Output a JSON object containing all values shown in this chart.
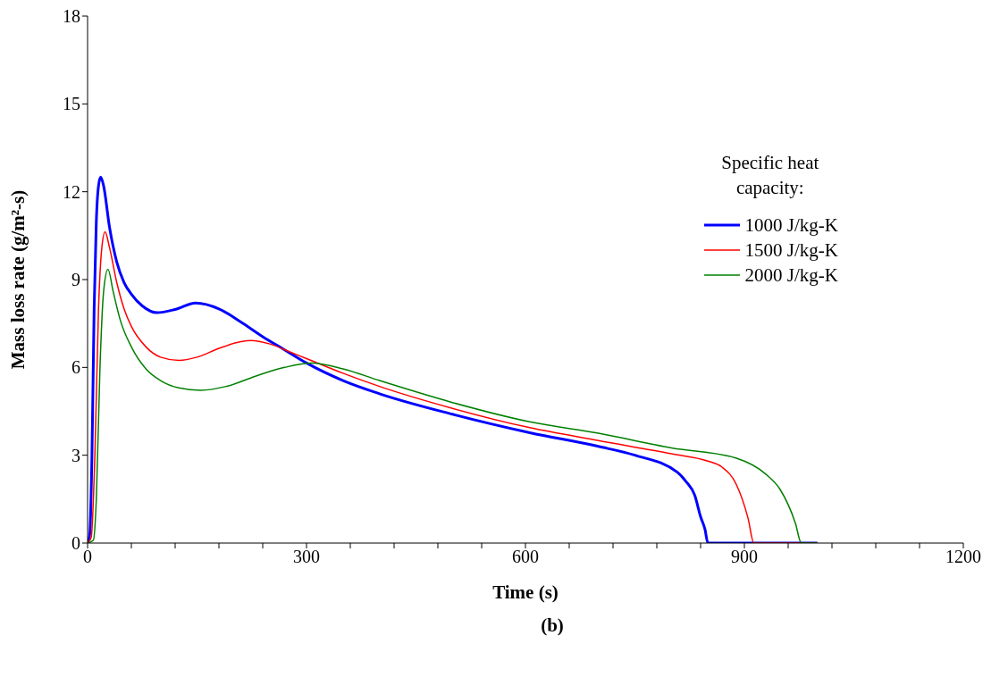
{
  "chart_data": {
    "type": "line",
    "xlabel": "Time (s)",
    "ylabel": "Mass loss rate (g/m²-s)",
    "legend_title": "Specific heat capacity:",
    "legend": "right",
    "grid": false,
    "marker": "none",
    "line_style": "solid",
    "annotations": [
      "(b)"
    ],
    "xlim": [
      0,
      1200
    ],
    "ylim": [
      0,
      18
    ],
    "xticks": [
      0,
      {
        "value": 60,
        "label": null
      },
      {
        "value": 120,
        "label": null
      },
      {
        "value": 180,
        "label": null
      },
      {
        "value": 240,
        "label": null
      },
      300,
      {
        "value": 360,
        "label": null
      },
      {
        "value": 420,
        "label": null
      },
      {
        "value": 480,
        "label": null
      },
      {
        "value": 540,
        "label": null
      },
      600,
      {
        "value": 660,
        "label": null
      },
      {
        "value": 720,
        "label": null
      },
      {
        "value": 780,
        "label": null
      },
      {
        "value": 840,
        "label": null
      },
      900,
      {
        "value": 960,
        "label": null
      },
      {
        "value": 1020,
        "label": null
      },
      {
        "value": 1080,
        "label": null
      },
      {
        "value": 1140,
        "label": null
      },
      1200
    ],
    "yticks": [
      0,
      3,
      6,
      9,
      12,
      15,
      18
    ],
    "series": [
      {
        "name": "1000 J/kg-K",
        "color": "#0000ff",
        "x": [
          0,
          3,
          6,
          9,
          12,
          15,
          18,
          22,
          30,
          40,
          50,
          60,
          75,
          95,
          120,
          148,
          180,
          210,
          240,
          270,
          300,
          350,
          400,
          500,
          606,
          700,
          750,
          808,
          820,
          832,
          840,
          846,
          850,
          1000
        ],
        "values": [
          0,
          0.3,
          3,
          8,
          11,
          12.2,
          12.5,
          12.2,
          10.8,
          9.6,
          8.9,
          8.5,
          8.1,
          7.87,
          7.98,
          8.2,
          8.0,
          7.55,
          7.05,
          6.6,
          6.15,
          5.55,
          5.1,
          4.4,
          3.77,
          3.3,
          3.0,
          2.42,
          2.1,
          1.63,
          0.9,
          0.47,
          0,
          0
        ]
      },
      {
        "name": "1500 J/kg-K",
        "color": "#ff0000",
        "x": [
          0,
          5,
          10,
          15,
          20,
          24,
          30,
          40,
          50,
          60,
          80,
          100,
          125,
          150,
          180,
          210,
          224,
          250,
          280,
          300,
          350,
          400,
          500,
          606,
          700,
          800,
          850,
          869,
          889,
          905,
          913,
          1000
        ],
        "values": [
          0,
          0.2,
          3,
          8,
          10.2,
          10.63,
          10.1,
          8.9,
          8.0,
          7.4,
          6.7,
          6.35,
          6.24,
          6.35,
          6.65,
          6.88,
          6.92,
          6.8,
          6.5,
          6.3,
          5.8,
          5.35,
          4.6,
          3.94,
          3.5,
          3.05,
          2.8,
          2.6,
          2.0,
          0.85,
          0,
          0
        ]
      },
      {
        "name": "2000 J/kg-K",
        "color": "#008000",
        "x": [
          0,
          8,
          12,
          17,
          22,
          28,
          35,
          45,
          60,
          80,
          100,
          125,
          155,
          190,
          230,
          270,
          307,
          350,
          400,
          500,
          606,
          700,
          800,
          889,
          929,
          949,
          970,
          978,
          1000
        ],
        "values": [
          0,
          0.1,
          1.5,
          6,
          8.6,
          9.35,
          8.6,
          7.6,
          6.7,
          5.95,
          5.55,
          5.3,
          5.22,
          5.35,
          5.7,
          6.0,
          6.15,
          5.95,
          5.55,
          4.8,
          4.14,
          3.75,
          3.25,
          2.9,
          2.36,
          1.83,
          0.67,
          0,
          0
        ]
      }
    ]
  }
}
